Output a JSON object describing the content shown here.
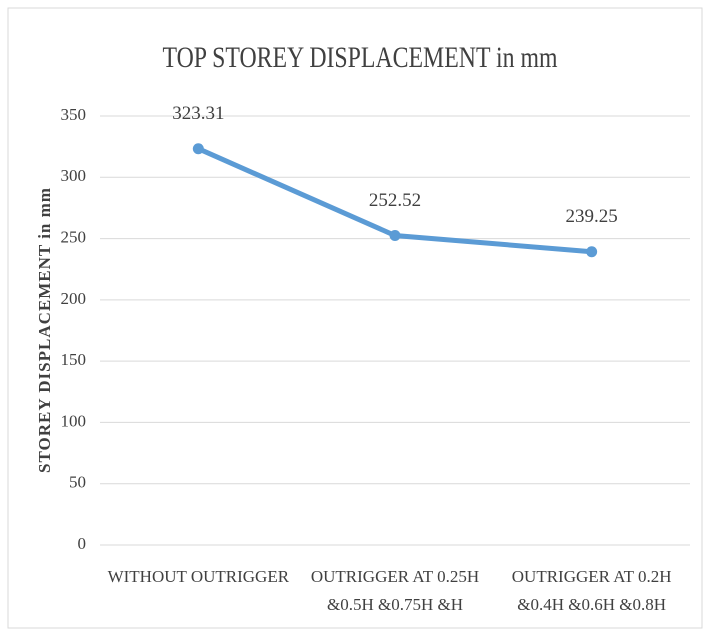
{
  "chart_data": {
    "type": "line",
    "title": "TOP STOREY DISPLACEMENT in mm",
    "y_label": "STOREY DISPLACEMENT in mm",
    "categories": [
      [
        "WITHOUT OUTRIGGER"
      ],
      [
        "OUTRIGGER AT 0.25H",
        "&0.5H &0.75H &H"
      ],
      [
        "OUTRIGGER AT 0.2H",
        "&0.4H &0.6H    &0.8H"
      ]
    ],
    "values": [
      323.31,
      252.52,
      239.25
    ],
    "color": "#5b9bd5",
    "ylim": [
      0,
      350
    ],
    "yticks": [
      0,
      50,
      100,
      150,
      200,
      250,
      300,
      350
    ],
    "grid": true
  }
}
